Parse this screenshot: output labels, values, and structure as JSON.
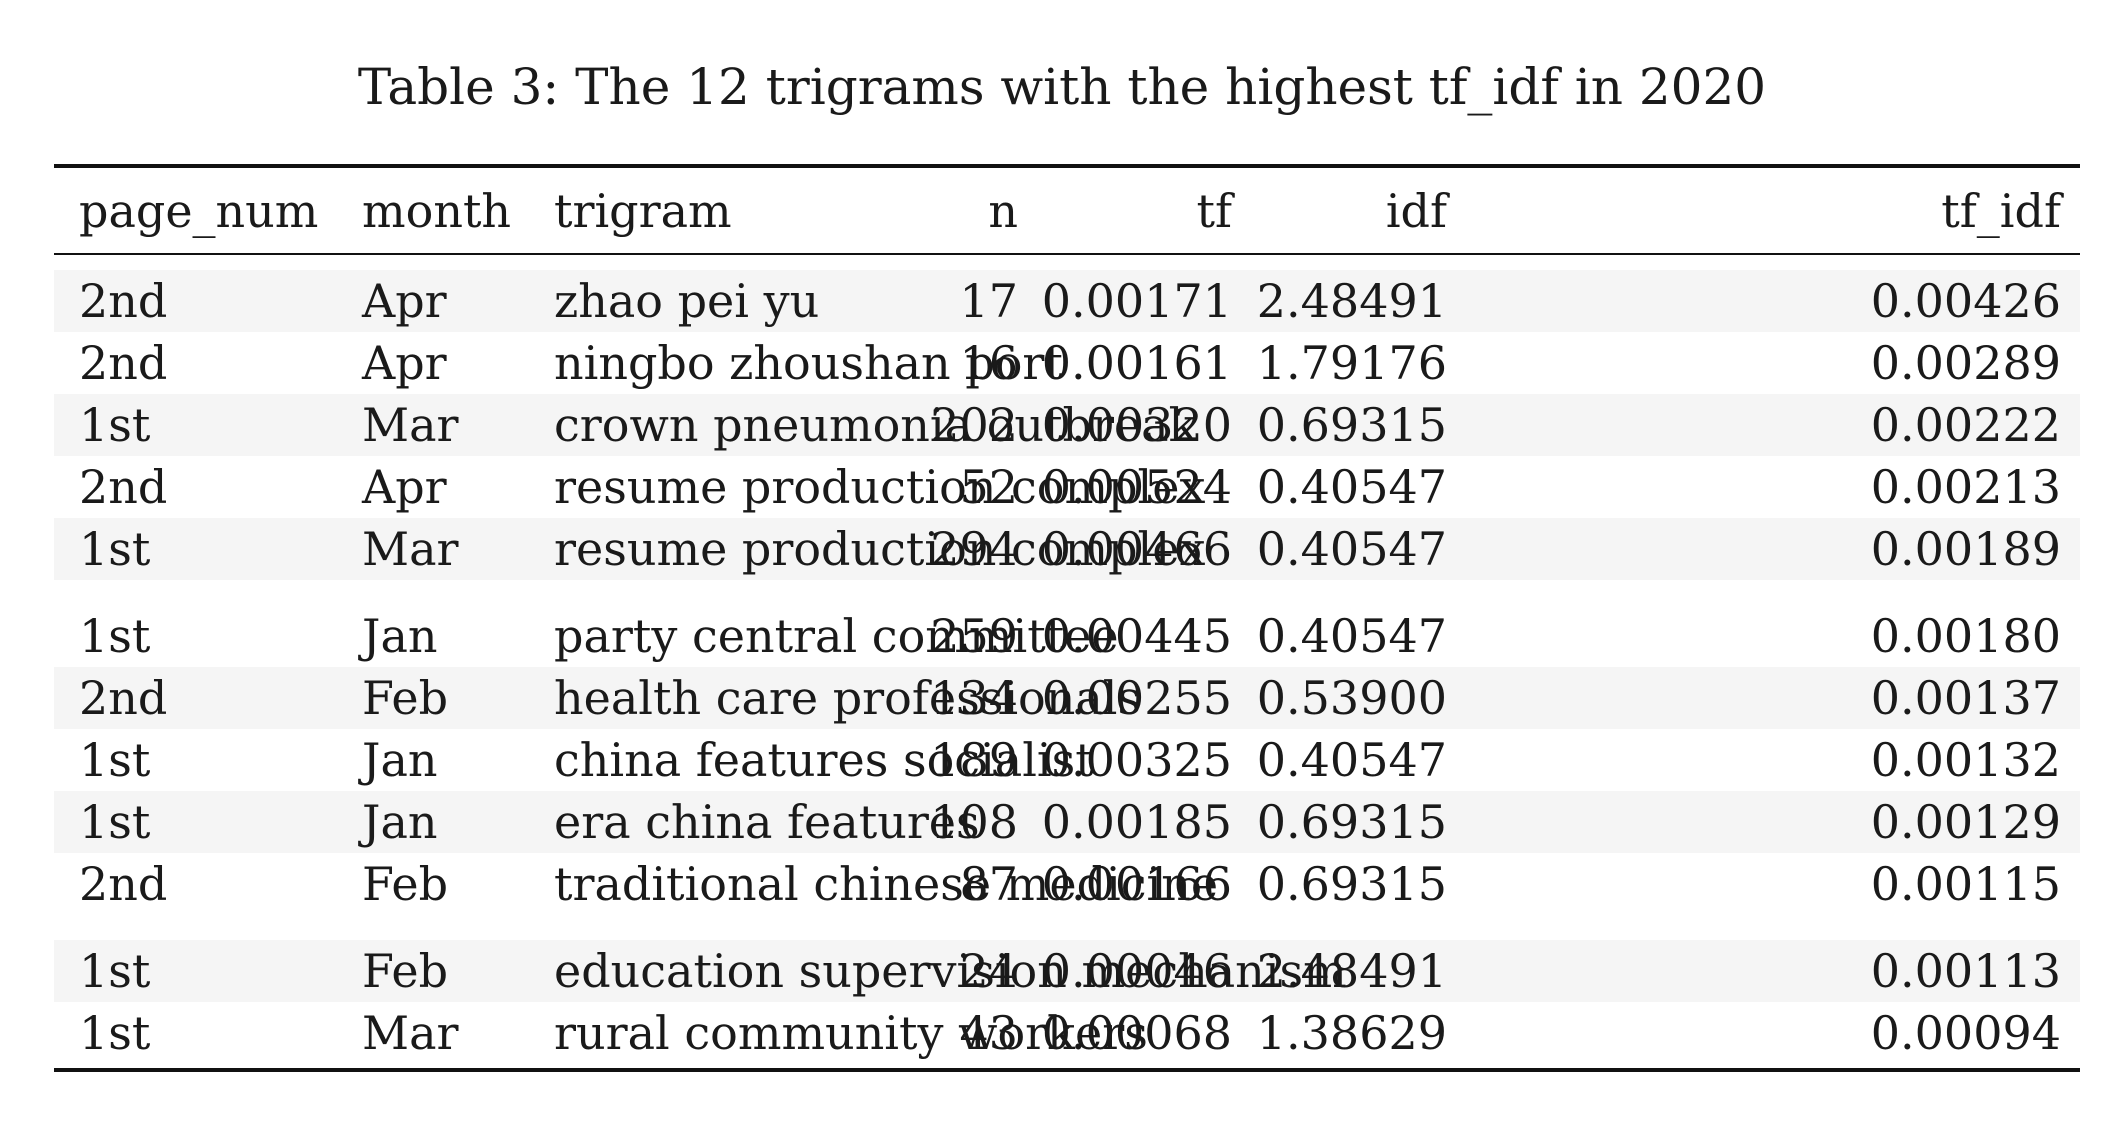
{
  "caption": "Table 3: The 12 trigrams with the highest tf_idf in 2020",
  "columns": {
    "page_num": "page_num",
    "month": "month",
    "trigram": "trigram",
    "n": "n",
    "tf": "tf",
    "idf": "idf",
    "tf_idf": "tf_idf"
  },
  "rows": [
    {
      "page_num": "2nd",
      "month": "Apr",
      "trigram": "zhao pei yu",
      "n": "17",
      "tf": "0.00171",
      "idf": "2.48491",
      "tf_idf": "0.00426"
    },
    {
      "page_num": "2nd",
      "month": "Apr",
      "trigram": "ningbo zhoushan port",
      "n": "16",
      "tf": "0.00161",
      "idf": "1.79176",
      "tf_idf": "0.00289"
    },
    {
      "page_num": "1st",
      "month": "Mar",
      "trigram": "crown pneumonia outbreak",
      "n": "202",
      "tf": "0.00320",
      "idf": "0.69315",
      "tf_idf": "0.00222"
    },
    {
      "page_num": "2nd",
      "month": "Apr",
      "trigram": "resume production complex",
      "n": "52",
      "tf": "0.00524",
      "idf": "0.40547",
      "tf_idf": "0.00213"
    },
    {
      "page_num": "1st",
      "month": "Mar",
      "trigram": "resume production complex",
      "n": "294",
      "tf": "0.00466",
      "idf": "0.40547",
      "tf_idf": "0.00189"
    },
    {
      "page_num": "1st",
      "month": "Jan",
      "trigram": "party central committee",
      "n": "259",
      "tf": "0.00445",
      "idf": "0.40547",
      "tf_idf": "0.00180"
    },
    {
      "page_num": "2nd",
      "month": "Feb",
      "trigram": "health care professionals",
      "n": "134",
      "tf": "0.00255",
      "idf": "0.53900",
      "tf_idf": "0.00137"
    },
    {
      "page_num": "1st",
      "month": "Jan",
      "trigram": "china features socialist",
      "n": "189",
      "tf": "0.00325",
      "idf": "0.40547",
      "tf_idf": "0.00132"
    },
    {
      "page_num": "1st",
      "month": "Jan",
      "trigram": "era china features",
      "n": "108",
      "tf": "0.00185",
      "idf": "0.69315",
      "tf_idf": "0.00129"
    },
    {
      "page_num": "2nd",
      "month": "Feb",
      "trigram": "traditional chinese medicine",
      "n": "87",
      "tf": "0.00166",
      "idf": "0.69315",
      "tf_idf": "0.00115"
    },
    {
      "page_num": "1st",
      "month": "Feb",
      "trigram": "education supervision mechanism",
      "n": "24",
      "tf": "0.00046",
      "idf": "2.48491",
      "tf_idf": "0.00113"
    },
    {
      "page_num": "1st",
      "month": "Mar",
      "trigram": "rural community workers",
      "n": "43",
      "tf": "0.00068",
      "idf": "1.38629",
      "tf_idf": "0.00094"
    }
  ]
}
